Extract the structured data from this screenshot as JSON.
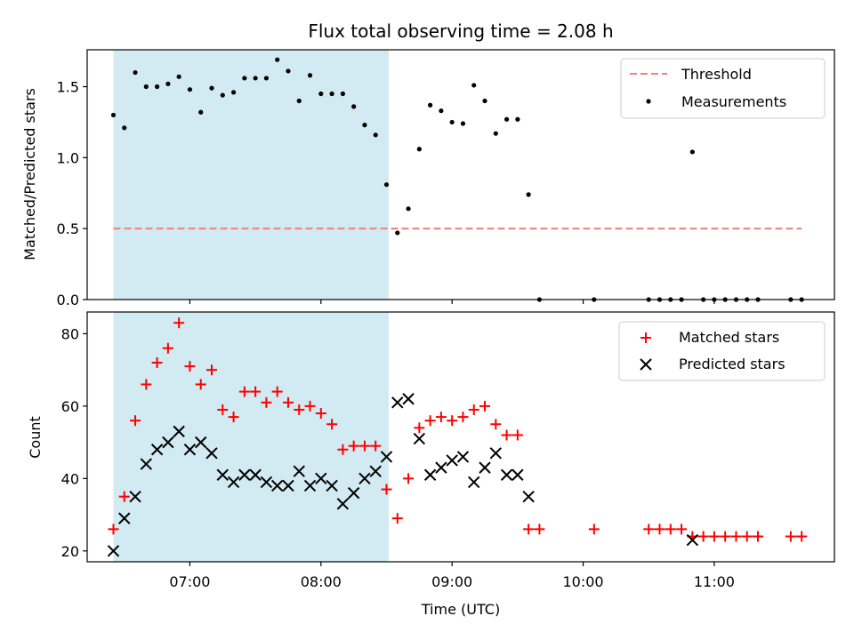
{
  "chart_data": [
    {
      "type": "scatter",
      "title": "Flux total observing time = 2.08 h",
      "xlabel": "",
      "ylabel": "Matched/Predicted stars",
      "ylim": [
        0,
        1.76
      ],
      "xlim": [
        "06:13",
        "11:55"
      ],
      "yticks": [
        0.0,
        0.5,
        1.0,
        1.5
      ],
      "ytick_labels": [
        "0.0",
        "0.5",
        "1.0",
        "1.5"
      ],
      "shaded_region": {
        "from": "06:25",
        "to": "08:31",
        "color": "#add8e6"
      },
      "legend_position": "top-right",
      "threshold": {
        "name": "Threshold",
        "value": 0.5,
        "from": "06:25",
        "to": "11:40",
        "color": "#f08080"
      },
      "series": [
        {
          "name": "Measurements",
          "marker": "dot",
          "color": "#000000",
          "points": [
            [
              "06:25",
              1.3
            ],
            [
              "06:30",
              1.21
            ],
            [
              "06:35",
              1.6
            ],
            [
              "06:40",
              1.5
            ],
            [
              "06:45",
              1.5
            ],
            [
              "06:50",
              1.52
            ],
            [
              "06:55",
              1.57
            ],
            [
              "07:00",
              1.48
            ],
            [
              "07:05",
              1.32
            ],
            [
              "07:10",
              1.49
            ],
            [
              "07:15",
              1.44
            ],
            [
              "07:20",
              1.46
            ],
            [
              "07:25",
              1.56
            ],
            [
              "07:30",
              1.56
            ],
            [
              "07:35",
              1.56
            ],
            [
              "07:40",
              1.69
            ],
            [
              "07:45",
              1.61
            ],
            [
              "07:50",
              1.4
            ],
            [
              "07:55",
              1.58
            ],
            [
              "08:00",
              1.45
            ],
            [
              "08:05",
              1.45
            ],
            [
              "08:10",
              1.45
            ],
            [
              "08:15",
              1.36
            ],
            [
              "08:20",
              1.23
            ],
            [
              "08:25",
              1.16
            ],
            [
              "08:30",
              0.81
            ],
            [
              "08:35",
              0.47
            ],
            [
              "08:40",
              0.64
            ],
            [
              "08:45",
              1.06
            ],
            [
              "08:50",
              1.37
            ],
            [
              "08:55",
              1.33
            ],
            [
              "09:00",
              1.25
            ],
            [
              "09:05",
              1.24
            ],
            [
              "09:10",
              1.51
            ],
            [
              "09:15",
              1.4
            ],
            [
              "09:20",
              1.17
            ],
            [
              "09:25",
              1.27
            ],
            [
              "09:30",
              1.27
            ],
            [
              "09:35",
              0.74
            ],
            [
              "09:40",
              0.0
            ],
            [
              "10:05",
              0.0
            ],
            [
              "10:30",
              0.0
            ],
            [
              "10:35",
              0.0
            ],
            [
              "10:40",
              0.0
            ],
            [
              "10:45",
              0.0
            ],
            [
              "10:50",
              1.04
            ],
            [
              "10:55",
              0.0
            ],
            [
              "11:00",
              0.0
            ],
            [
              "11:05",
              0.0
            ],
            [
              "11:10",
              0.0
            ],
            [
              "11:15",
              0.0
            ],
            [
              "11:20",
              0.0
            ],
            [
              "11:35",
              0.0
            ],
            [
              "11:40",
              0.0
            ]
          ]
        }
      ]
    },
    {
      "type": "scatter",
      "title": "",
      "xlabel": "Time (UTC)",
      "ylabel": "Count",
      "ylim": [
        17,
        86
      ],
      "xlim": [
        "06:13",
        "11:55"
      ],
      "yticks": [
        20,
        40,
        60,
        80
      ],
      "ytick_labels": [
        "20",
        "40",
        "60",
        "80"
      ],
      "xticks": [
        "07:00",
        "08:00",
        "09:00",
        "10:00",
        "11:00"
      ],
      "xtick_labels": [
        "07:00",
        "08:00",
        "09:00",
        "10:00",
        "11:00"
      ],
      "shaded_region": {
        "from": "06:25",
        "to": "08:31",
        "color": "#add8e6"
      },
      "legend_position": "top-right",
      "series": [
        {
          "name": "Matched stars",
          "marker": "plus",
          "color": "#ff0000",
          "points": [
            [
              "06:25",
              26
            ],
            [
              "06:30",
              35
            ],
            [
              "06:35",
              56
            ],
            [
              "06:40",
              66
            ],
            [
              "06:45",
              72
            ],
            [
              "06:50",
              76
            ],
            [
              "06:55",
              83
            ],
            [
              "07:00",
              71
            ],
            [
              "07:05",
              66
            ],
            [
              "07:10",
              70
            ],
            [
              "07:15",
              59
            ],
            [
              "07:20",
              57
            ],
            [
              "07:25",
              64
            ],
            [
              "07:30",
              64
            ],
            [
              "07:35",
              61
            ],
            [
              "07:40",
              64
            ],
            [
              "07:45",
              61
            ],
            [
              "07:50",
              59
            ],
            [
              "07:55",
              60
            ],
            [
              "08:00",
              58
            ],
            [
              "08:05",
              55
            ],
            [
              "08:10",
              48
            ],
            [
              "08:15",
              49
            ],
            [
              "08:20",
              49
            ],
            [
              "08:25",
              49
            ],
            [
              "08:30",
              37
            ],
            [
              "08:35",
              29
            ],
            [
              "08:40",
              40
            ],
            [
              "08:45",
              54
            ],
            [
              "08:50",
              56
            ],
            [
              "08:55",
              57
            ],
            [
              "09:00",
              56
            ],
            [
              "09:05",
              57
            ],
            [
              "09:10",
              59
            ],
            [
              "09:15",
              60
            ],
            [
              "09:20",
              55
            ],
            [
              "09:25",
              52
            ],
            [
              "09:30",
              52
            ],
            [
              "09:35",
              26
            ],
            [
              "09:40",
              26
            ],
            [
              "10:05",
              26
            ],
            [
              "10:30",
              26
            ],
            [
              "10:35",
              26
            ],
            [
              "10:40",
              26
            ],
            [
              "10:45",
              26
            ],
            [
              "10:50",
              24
            ],
            [
              "10:55",
              24
            ],
            [
              "11:00",
              24
            ],
            [
              "11:05",
              24
            ],
            [
              "11:10",
              24
            ],
            [
              "11:15",
              24
            ],
            [
              "11:20",
              24
            ],
            [
              "11:35",
              24
            ],
            [
              "11:40",
              24
            ]
          ]
        },
        {
          "name": "Predicted stars",
          "marker": "x",
          "color": "#000000",
          "points": [
            [
              "06:25",
              20
            ],
            [
              "06:30",
              29
            ],
            [
              "06:35",
              35
            ],
            [
              "06:40",
              44
            ],
            [
              "06:45",
              48
            ],
            [
              "06:50",
              50
            ],
            [
              "06:55",
              53
            ],
            [
              "07:00",
              48
            ],
            [
              "07:05",
              50
            ],
            [
              "07:10",
              47
            ],
            [
              "07:15",
              41
            ],
            [
              "07:20",
              39
            ],
            [
              "07:25",
              41
            ],
            [
              "07:30",
              41
            ],
            [
              "07:35",
              39
            ],
            [
              "07:40",
              38
            ],
            [
              "07:45",
              38
            ],
            [
              "07:50",
              42
            ],
            [
              "07:55",
              38
            ],
            [
              "08:00",
              40
            ],
            [
              "08:05",
              38
            ],
            [
              "08:10",
              33
            ],
            [
              "08:15",
              36
            ],
            [
              "08:20",
              40
            ],
            [
              "08:25",
              42
            ],
            [
              "08:30",
              46
            ],
            [
              "08:35",
              61
            ],
            [
              "08:40",
              62
            ],
            [
              "08:45",
              51
            ],
            [
              "08:50",
              41
            ],
            [
              "08:55",
              43
            ],
            [
              "09:00",
              45
            ],
            [
              "09:05",
              46
            ],
            [
              "09:10",
              39
            ],
            [
              "09:15",
              43
            ],
            [
              "09:20",
              47
            ],
            [
              "09:25",
              41
            ],
            [
              "09:30",
              41
            ],
            [
              "09:35",
              35
            ],
            [
              "10:50",
              23
            ]
          ]
        }
      ]
    }
  ]
}
